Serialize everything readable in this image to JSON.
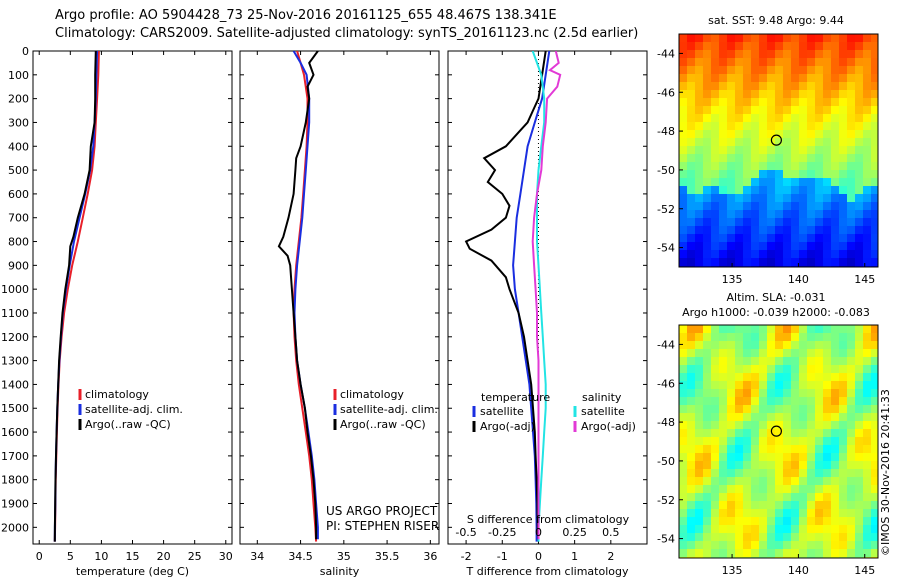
{
  "header": {
    "line1": "Argo profile: AO 5904428_73 25-Nov-2016 20161125_655 48.467S 138.341E",
    "line2": "Climatology: CARS2009. Satellite-adjusted climatology: synTS_20161123.nc (2.5d earlier)"
  },
  "credit": {
    "project": "US ARGO PROJECT",
    "pi": "PI: STEPHEN RISER",
    "stamp": "©IMOS 30-Nov-2016 20:41:33"
  },
  "colors": {
    "climatology": "#e8202a",
    "satellite": "#1a2ee0",
    "argo": "#000000",
    "sal_satellite": "#22e4e4",
    "sal_argo": "#e23ad6",
    "zero_line": "#000000"
  },
  "legends": {
    "profile": [
      "climatology",
      "satellite-adj. clim.",
      "Argo(..raw -QC)"
    ],
    "diff_temp_title": "temperature",
    "diff_sal_title": "salinity",
    "diff_temp": [
      "satellite",
      "Argo(-adj)"
    ],
    "diff_sal": [
      "satellite",
      "Argo(-adj)"
    ]
  },
  "maps": {
    "sst_title": "sat. SST: 9.48 Argo: 9.44",
    "sla_title1": "Altim. SLA: -0.031",
    "sla_title2": "Argo h1000: -0.039 h2000: -0.083",
    "lon_ticks": [
      135,
      140,
      145
    ],
    "lat_ticks": [
      -44,
      -46,
      -48,
      -50,
      -52,
      -54
    ],
    "lon_range": [
      131,
      146
    ],
    "lat_range": [
      -55,
      -43
    ],
    "float_position": {
      "lon": 138.341,
      "lat": -48.467
    }
  },
  "chart_data": [
    {
      "type": "line",
      "name": "temperature",
      "xlabel": "temperature (deg C)",
      "ylabel": "",
      "xlim": [
        -1,
        31
      ],
      "ylim": [
        2070,
        0
      ],
      "x_ticks": [
        0,
        5,
        10,
        15,
        20,
        25,
        30
      ],
      "y_ticks": [
        0,
        100,
        200,
        300,
        400,
        500,
        600,
        700,
        800,
        900,
        1000,
        1100,
        1200,
        1300,
        1400,
        1500,
        1600,
        1700,
        1800,
        1900,
        2000
      ],
      "series": [
        {
          "name": "climatology",
          "depth": [
            0,
            100,
            200,
            300,
            400,
            500,
            600,
            700,
            800,
            900,
            1000,
            1100,
            1200,
            1300,
            1400,
            1500,
            1600,
            1700,
            1800,
            1900,
            2000,
            2060
          ],
          "values": [
            9.6,
            9.5,
            9.3,
            9.1,
            8.9,
            8.5,
            7.8,
            7.0,
            6.2,
            5.3,
            4.6,
            4.0,
            3.6,
            3.3,
            3.1,
            2.95,
            2.85,
            2.75,
            2.65,
            2.6,
            2.55,
            2.5
          ]
        },
        {
          "name": "satellite-adj. clim.",
          "depth": [
            0,
            100,
            200,
            300,
            400,
            500,
            600,
            700,
            800,
            900,
            1000,
            1100,
            1200,
            1300,
            1400,
            1500,
            1600,
            1700,
            1800,
            1900,
            2000,
            2060
          ],
          "values": [
            9.3,
            9.2,
            9.1,
            8.9,
            8.7,
            8.2,
            7.4,
            6.5,
            5.6,
            4.9,
            4.3,
            3.8,
            3.5,
            3.25,
            3.05,
            2.9,
            2.8,
            2.7,
            2.62,
            2.58,
            2.52,
            2.5
          ]
        },
        {
          "name": "Argo(..raw -QC)",
          "depth": [
            0,
            100,
            200,
            300,
            400,
            500,
            600,
            700,
            780,
            820,
            900,
            1000,
            1100,
            1200,
            1300,
            1400,
            1500,
            1600,
            1700,
            1800,
            1900,
            2000,
            2060
          ],
          "values": [
            9.1,
            9.0,
            9.0,
            8.9,
            8.3,
            8.1,
            7.3,
            6.2,
            5.5,
            5.0,
            4.8,
            4.2,
            3.75,
            3.45,
            3.2,
            3.05,
            2.9,
            2.8,
            2.7,
            2.62,
            2.57,
            2.52,
            2.5
          ]
        }
      ]
    },
    {
      "type": "line",
      "name": "salinity",
      "xlabel": "salinity",
      "ylabel": "",
      "xlim": [
        33.8,
        36.1
      ],
      "ylim": [
        2070,
        0
      ],
      "x_ticks": [
        34,
        34.5,
        35,
        35.5,
        36
      ],
      "series": [
        {
          "name": "climatology",
          "depth": [
            0,
            50,
            100,
            200,
            300,
            400,
            500,
            600,
            700,
            800,
            900,
            1000,
            1100,
            1200,
            1300,
            1400,
            1500,
            1600,
            1700,
            1800,
            1900,
            2000,
            2060
          ],
          "values": [
            34.46,
            34.5,
            34.54,
            34.58,
            34.58,
            34.57,
            34.55,
            34.53,
            34.51,
            34.48,
            34.45,
            34.43,
            34.42,
            34.43,
            34.45,
            34.48,
            34.52,
            34.56,
            34.6,
            34.63,
            34.65,
            34.67,
            34.68
          ]
        },
        {
          "name": "satellite-adj. clim.",
          "depth": [
            0,
            50,
            100,
            200,
            300,
            400,
            500,
            600,
            700,
            800,
            900,
            1000,
            1100,
            1200,
            1300,
            1400,
            1500,
            1600,
            1700,
            1800,
            1900,
            2000,
            2050
          ],
          "values": [
            34.42,
            34.5,
            34.57,
            34.6,
            34.6,
            34.58,
            34.56,
            34.54,
            34.52,
            34.49,
            34.46,
            34.44,
            34.43,
            34.44,
            34.46,
            34.5,
            34.55,
            34.59,
            34.63,
            34.66,
            34.68,
            34.7,
            34.7
          ]
        },
        {
          "name": "Argo(..raw -QC)",
          "depth": [
            0,
            50,
            100,
            150,
            200,
            300,
            400,
            450,
            500,
            600,
            700,
            780,
            820,
            860,
            900,
            1000,
            1100,
            1200,
            1300,
            1400,
            1500,
            1600,
            1700,
            1800,
            1900,
            2000,
            2050
          ],
          "values": [
            34.7,
            34.6,
            34.65,
            34.58,
            34.6,
            34.56,
            34.5,
            34.45,
            34.44,
            34.42,
            34.36,
            34.3,
            34.25,
            34.35,
            34.38,
            34.4,
            34.42,
            34.44,
            34.46,
            34.5,
            34.55,
            34.58,
            34.62,
            34.65,
            34.67,
            34.68,
            34.68
          ]
        }
      ]
    },
    {
      "type": "line",
      "name": "difference from climatology",
      "xlabel": "T difference from climatology",
      "xlabel_top": "S difference from climatology",
      "xlim": [
        -2.5,
        3.0
      ],
      "ylim": [
        2070,
        0
      ],
      "x_ticks": [
        -2,
        -1,
        0,
        1,
        2
      ],
      "x_tick_labels": [
        "-2",
        "-1",
        "0",
        "1",
        "2"
      ],
      "s_ticks": [
        -0.5,
        -0.25,
        0,
        0.25,
        0.5
      ],
      "s_tick_labels": [
        "-0.5",
        "-0.25",
        "0",
        "0.25",
        "0.5"
      ],
      "s_scale": 4,
      "series": [
        {
          "name": "temperature satellite",
          "depth": [
            0,
            100,
            200,
            300,
            400,
            500,
            600,
            700,
            800,
            900,
            1000,
            1100,
            1200,
            1300,
            1400,
            1500,
            1600,
            1700,
            1800,
            1900,
            2000,
            2060
          ],
          "values": [
            0.3,
            0.2,
            0.1,
            -0.1,
            -0.3,
            -0.4,
            -0.5,
            -0.6,
            -0.65,
            -0.7,
            -0.65,
            -0.55,
            -0.45,
            -0.35,
            -0.25,
            -0.2,
            -0.15,
            -0.1,
            -0.08,
            -0.06,
            -0.05,
            -0.05
          ]
        },
        {
          "name": "temperature Argo(-adj)",
          "depth": [
            0,
            100,
            200,
            250,
            300,
            400,
            450,
            500,
            550,
            600,
            650,
            700,
            750,
            800,
            830,
            880,
            950,
            1000,
            1100,
            1200,
            1300,
            1400,
            1500,
            1600,
            1700,
            1800,
            1900,
            2000,
            2060
          ],
          "values": [
            0.2,
            0.1,
            0.0,
            -0.15,
            -0.3,
            -0.9,
            -1.5,
            -1.2,
            -1.4,
            -1.0,
            -0.8,
            -0.9,
            -1.3,
            -2.0,
            -1.9,
            -1.3,
            -0.9,
            -0.8,
            -0.55,
            -0.4,
            -0.3,
            -0.2,
            -0.15,
            -0.1,
            -0.08,
            -0.05,
            -0.03,
            -0.02,
            0.0
          ]
        },
        {
          "name": "salinity satellite",
          "depth": [
            0,
            50,
            100,
            200,
            300,
            400,
            500,
            600,
            700,
            800,
            900,
            1000,
            1100,
            1200,
            1300,
            1400,
            1500,
            1600,
            1700,
            1800,
            1900,
            2000,
            2060
          ],
          "values": [
            -0.04,
            -0.01,
            0.02,
            0.04,
            0.04,
            0.02,
            0.0,
            -0.01,
            -0.01,
            -0.01,
            0.0,
            0.01,
            0.02,
            0.03,
            0.04,
            0.05,
            0.05,
            0.04,
            0.03,
            0.02,
            0.01,
            0.0,
            0.0
          ]
        },
        {
          "name": "salinity Argo(-adj)",
          "depth": [
            0,
            50,
            80,
            100,
            150,
            200,
            300,
            400,
            500,
            600,
            700,
            800,
            900,
            1000,
            1100,
            1200,
            1300,
            1400,
            1500,
            1600,
            1700,
            1800,
            1900,
            2000,
            2050
          ],
          "values": [
            0.12,
            0.14,
            0.08,
            0.15,
            0.13,
            0.06,
            0.05,
            0.03,
            0.02,
            -0.01,
            -0.03,
            -0.04,
            -0.03,
            -0.02,
            -0.01,
            -0.01,
            0.0,
            0.0,
            0.0,
            0.0,
            0.0,
            0.0,
            0.0,
            0.0,
            0.0
          ]
        }
      ]
    }
  ]
}
